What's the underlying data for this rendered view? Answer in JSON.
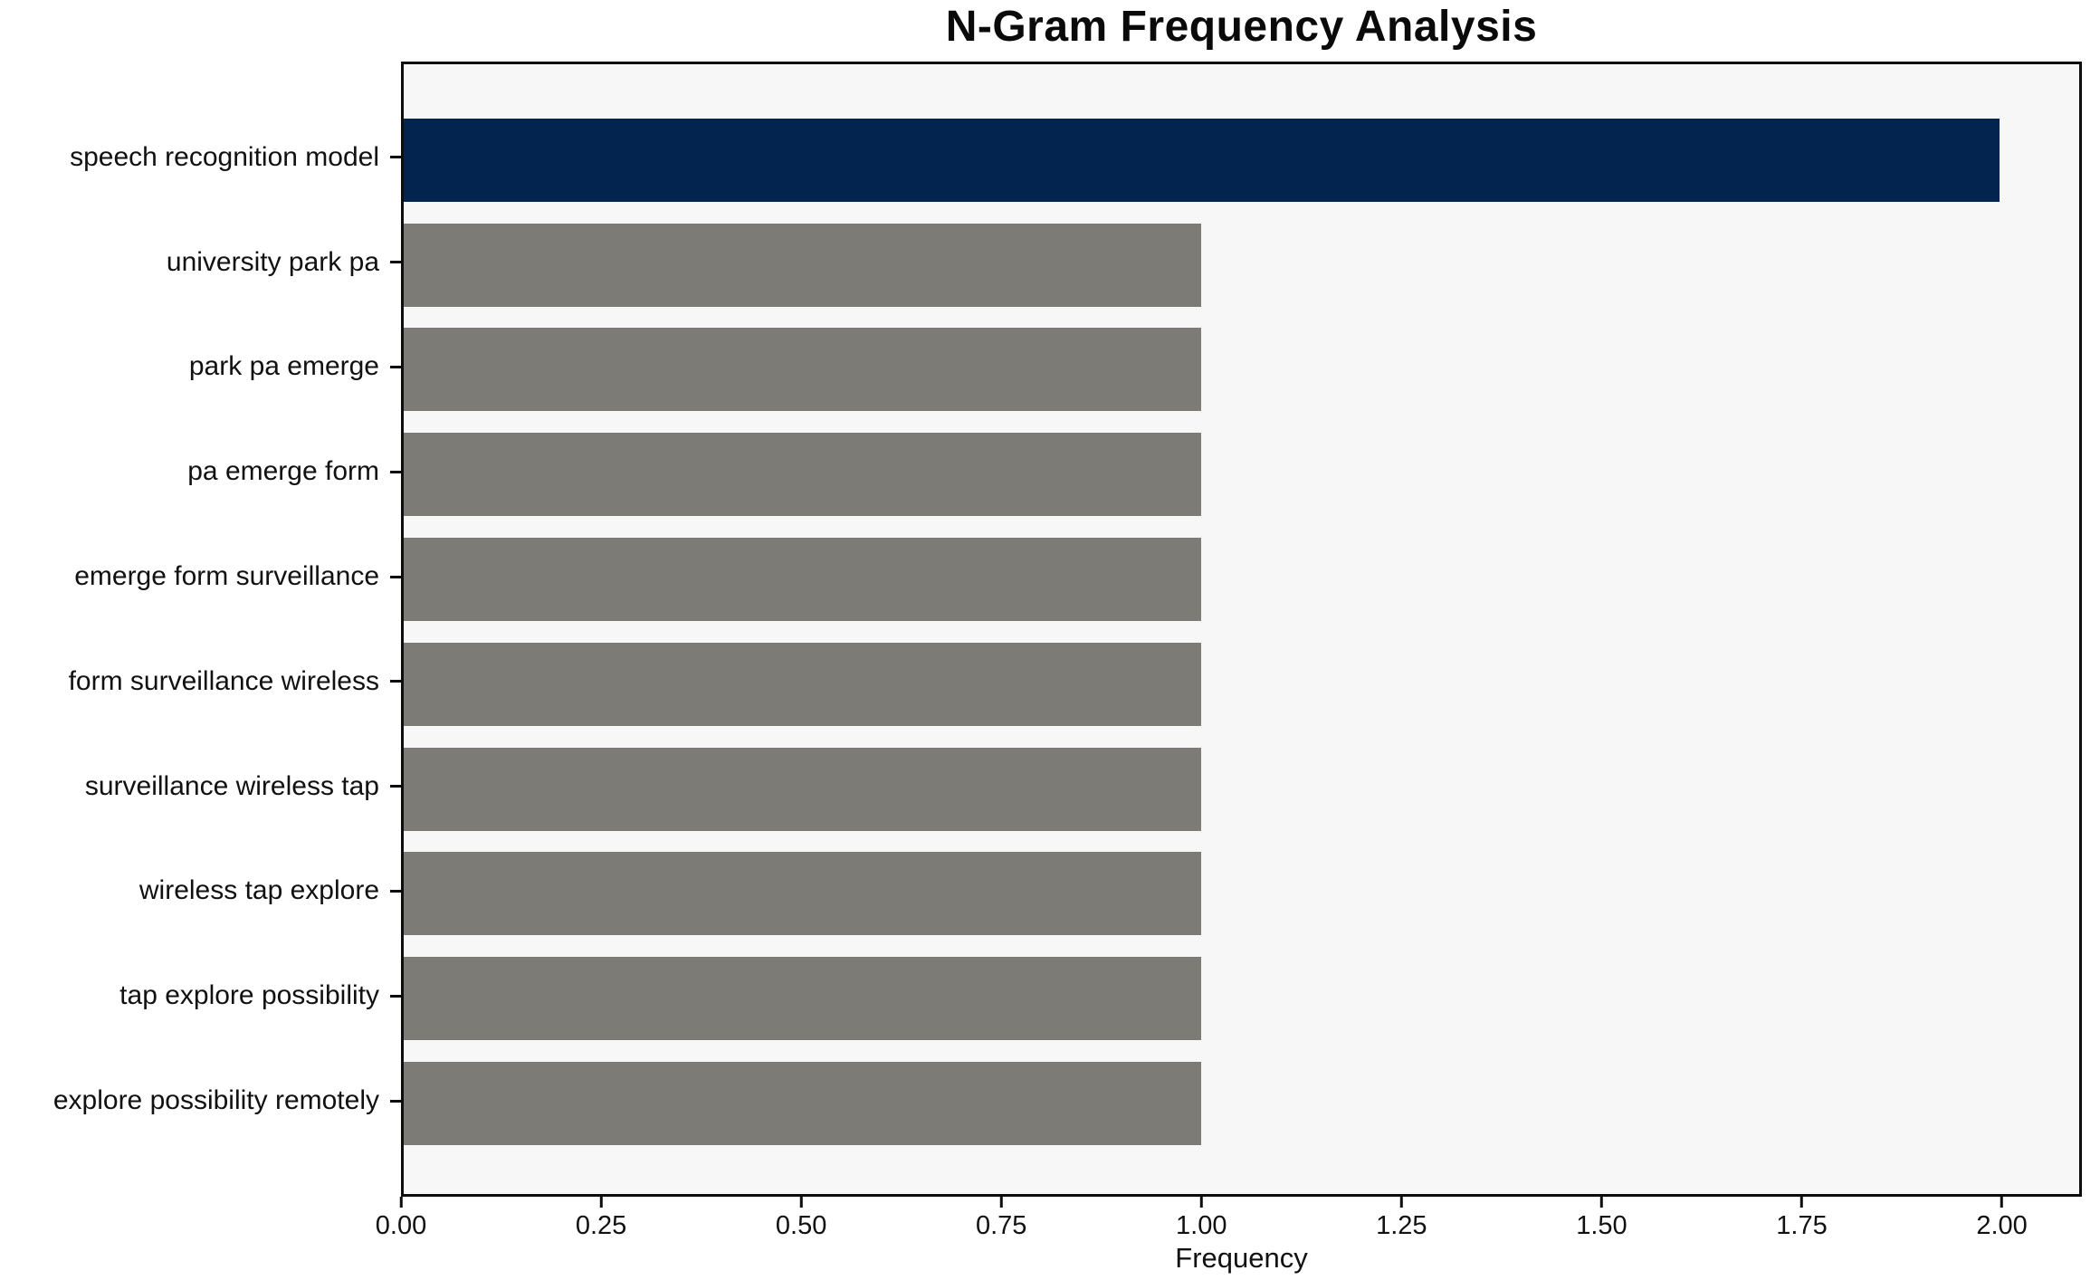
{
  "chart_data": {
    "type": "bar",
    "orientation": "horizontal",
    "title": "N-Gram Frequency Analysis",
    "xlabel": "Frequency",
    "ylabel": "",
    "categories": [
      "speech recognition model",
      "university park pa",
      "park pa emerge",
      "pa emerge form",
      "emerge form surveillance",
      "form surveillance wireless",
      "surveillance wireless tap",
      "wireless tap explore",
      "tap explore possibility",
      "explore possibility remotely"
    ],
    "values": [
      2,
      1,
      1,
      1,
      1,
      1,
      1,
      1,
      1,
      1
    ],
    "bar_colors": [
      "#02244e",
      "#7c7b76",
      "#7c7b76",
      "#7c7b76",
      "#7c7b76",
      "#7c7b76",
      "#7c7b76",
      "#7c7b76",
      "#7c7b76",
      "#7c7b76"
    ],
    "xlim": [
      0,
      2.1
    ],
    "xtick_values": [
      0,
      0.25,
      0.5,
      0.75,
      1.0,
      1.25,
      1.5,
      1.75,
      2.0
    ],
    "xtick_labels": [
      "0.00",
      "0.25",
      "0.50",
      "0.75",
      "1.00",
      "1.25",
      "1.50",
      "1.75",
      "2.00"
    ],
    "grid": false,
    "legend": null,
    "colors": {
      "highlight_bar": "#02244e",
      "default_bar": "#7c7b76",
      "plot_background": "#f7f7f7",
      "figure_background": "#ffffff",
      "spine": "#0d0d0d"
    }
  }
}
